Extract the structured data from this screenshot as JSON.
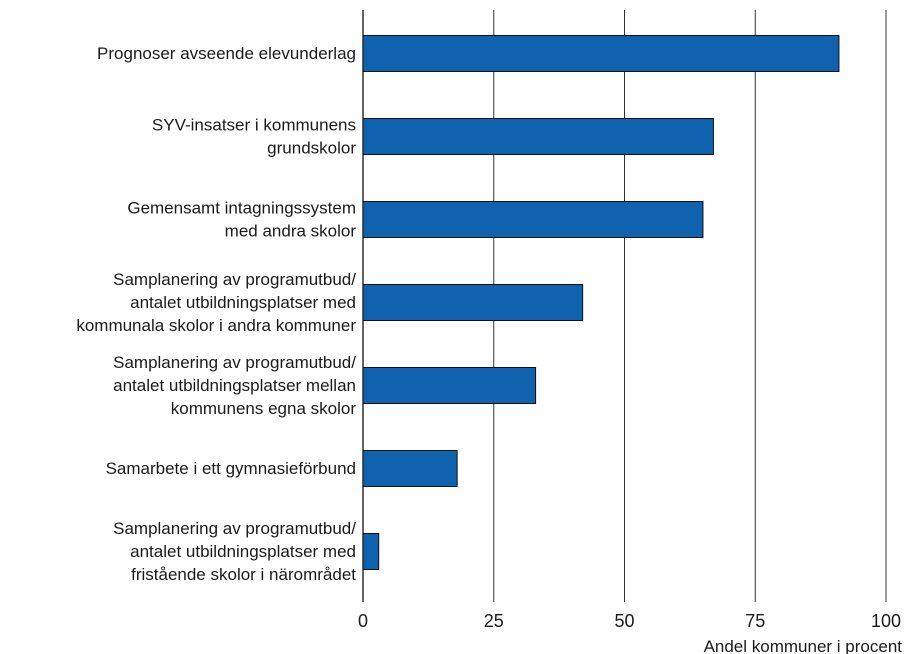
{
  "chart_data": {
    "type": "bar",
    "orientation": "horizontal",
    "title": "",
    "xlabel": "Andel kommuner i procent",
    "ylabel": "",
    "xlim": [
      0,
      100
    ],
    "xticks": [
      0,
      25,
      50,
      75,
      100
    ],
    "grid": "vertical",
    "bar_color": "#0E62AE",
    "bar_edge_color": "#111111",
    "categories": [
      [
        "Prognoser avseende elevunderlag"
      ],
      [
        "SYV-insatser i kommunens",
        "grundskolor"
      ],
      [
        "Gemensamt intagningssystem",
        "med andra skolor"
      ],
      [
        "Samplanering av programutbud/",
        "antalet utbildningsplatser med",
        "kommunala skolor i andra kommuner"
      ],
      [
        "Samplanering av programutbud/",
        "antalet utbildningsplatser mellan",
        "kommunens egna skolor"
      ],
      [
        "Samarbete i ett gymnasieförbund"
      ],
      [
        "Samplanering av programutbud/",
        "antalet utbildningsplatser med",
        "fristående skolor i närområdet"
      ]
    ],
    "values": [
      91,
      67,
      65,
      42,
      33,
      18,
      3
    ]
  }
}
